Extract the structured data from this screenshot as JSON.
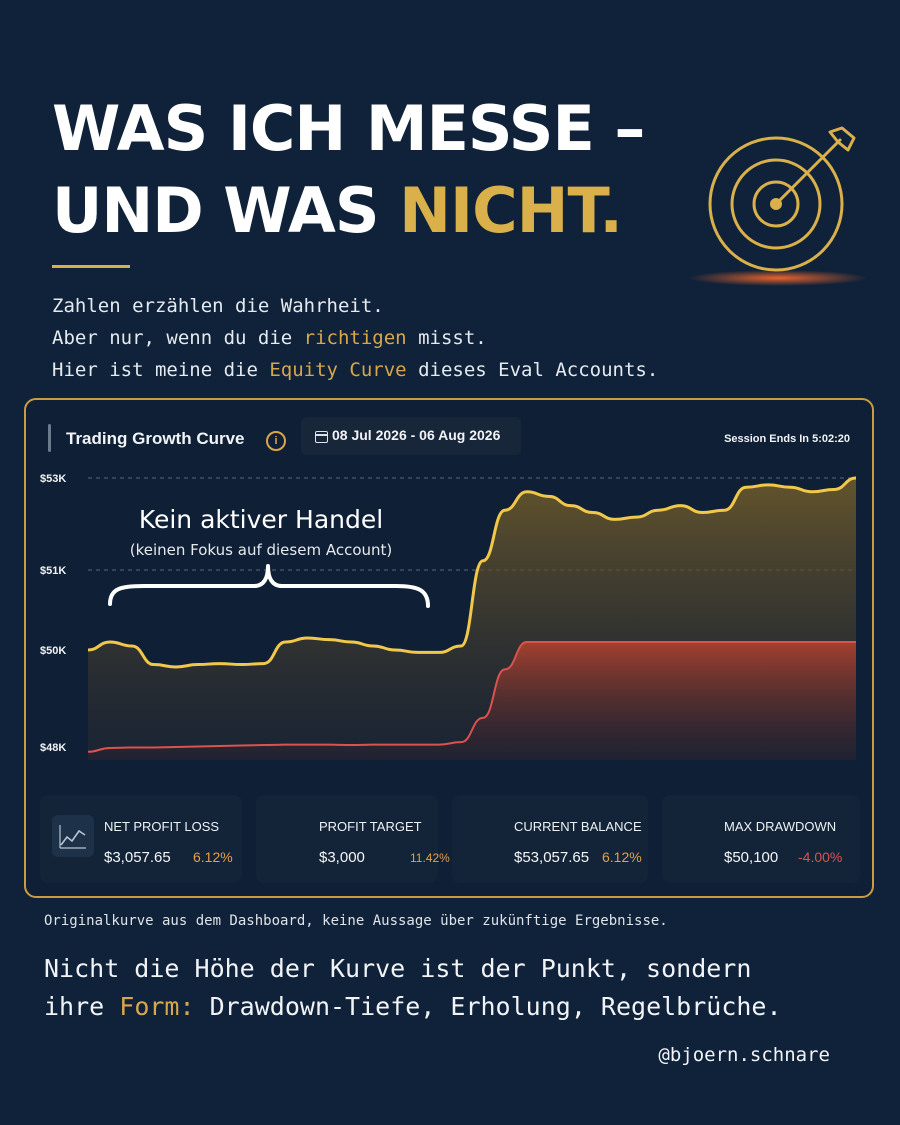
{
  "headline": {
    "line1": "WAS ICH MESSE –",
    "line2_prefix": "UND WAS ",
    "line2_accent": "NICHT",
    "line2_suffix": "."
  },
  "icons": {
    "target": "target-arrow-icon",
    "info": "info-icon",
    "calendar": "calendar-icon",
    "chart": "line-chart-icon"
  },
  "colors": {
    "background": "#0f2239",
    "accent": "#d9b04a",
    "equity_line": "#f2c84b",
    "drawdown": "#d9534f"
  },
  "intro": {
    "line1": "Zahlen erzählen die Wahrheit.",
    "line2_prefix": "Aber nur, wenn du die ",
    "line2_accent": "richtigen",
    "line2_suffix": " misst.",
    "line3_prefix": "Hier ist meine die ",
    "line3_accent": "Equity Curve",
    "line3_suffix": " dieses Eval Accounts."
  },
  "card": {
    "title": "Trading Growth Curve",
    "date_range": "08 Jul 2026 - 06 Aug 2026",
    "session": "Session Ends In 5:02:20",
    "annotation_title": "Kein aktiver Handel",
    "annotation_sub": "(keinen Fokus auf diesem Account)"
  },
  "chart_data": {
    "type": "area",
    "y_tick_labels": [
      "$53K",
      "$51K",
      "$50K",
      "$48K"
    ],
    "y_ticks": [
      53000,
      51000,
      50000,
      48000
    ],
    "grid": "dashed horizontal",
    "series": [
      {
        "values": [
          50000,
          50100,
          50050,
          49700,
          49650,
          49700,
          49720,
          49700,
          49720,
          50100,
          50150,
          50130,
          50100,
          50050,
          50000,
          49950,
          49950,
          50050,
          51200,
          52300,
          52700,
          52600,
          52400,
          52250,
          52100,
          52150,
          52300,
          52400,
          52250,
          52300,
          52800,
          52850,
          52800,
          52700,
          52750,
          53000
        ]
      },
      {
        "values": [
          47900,
          47980,
          47990,
          47990,
          48000,
          48010,
          48020,
          48030,
          48040,
          48050,
          48050,
          48050,
          48040,
          48050,
          48050,
          48050,
          48050,
          48100,
          48600,
          49600,
          50100,
          50100,
          50100,
          50100,
          50100,
          50100,
          50100,
          50100,
          50100,
          50100,
          50100,
          50100,
          50100,
          50100,
          50100,
          50100
        ]
      }
    ]
  },
  "stats": [
    {
      "label": "NET PROFIT LOSS",
      "value": "$3,057.65",
      "pct": "6.12%"
    },
    {
      "label": "PROFIT TARGET",
      "value": "$3,000",
      "pct": "11.42%"
    },
    {
      "label": "CURRENT BALANCE",
      "value": "$53,057.65",
      "pct": "6.12%"
    },
    {
      "label": "MAX DRAWDOWN",
      "value": "$50,100",
      "pct": "-4.00%"
    }
  ],
  "footnote": "Originalkurve aus dem Dashboard, keine Aussage über zukünftige Ergebnisse.",
  "closing": {
    "line1": "Nicht die Höhe der Kurve ist der Punkt, sondern",
    "line2_prefix": "ihre ",
    "line2_accent": "Form:",
    "line2_suffix": " Drawdown-Tiefe, Erholung, Regelbrüche."
  },
  "handle": "@bjoern.schnare"
}
